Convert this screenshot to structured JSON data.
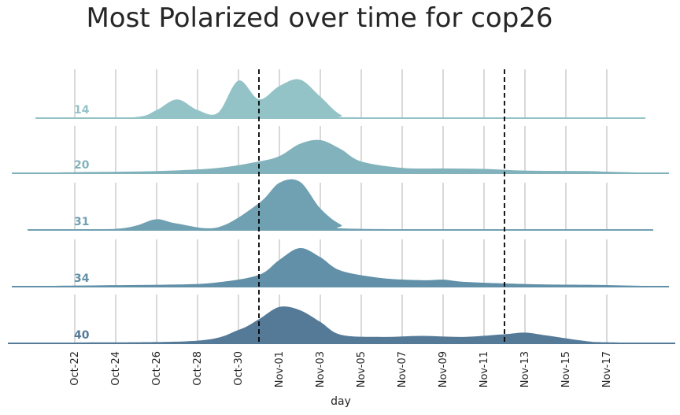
{
  "chart_data": {
    "type": "area",
    "title": "Most Polarized  over time for cop26",
    "xlabel": "day",
    "ylabel": "",
    "x_range": [
      "2021-10-22",
      "2021-11-17"
    ],
    "x_ticks": [
      "Oct-22",
      "Oct-24",
      "Oct-26",
      "Oct-28",
      "Oct-30",
      "Nov-01",
      "Nov-03",
      "Nov-05",
      "Nov-07",
      "Nov-09",
      "Nov-11",
      "Nov-13",
      "Nov-15",
      "Nov-17"
    ],
    "reference_lines": [
      "2021-10-31",
      "2021-11-12"
    ],
    "grid": true,
    "colors": [
      "#93c3c7",
      "#82b3bc",
      "#70a1b2",
      "#6190a8",
      "#557a98"
    ],
    "series": [
      {
        "name": "14",
        "points": [
          [
            "2021-10-22",
            0
          ],
          [
            "2021-10-25",
            0.02
          ],
          [
            "2021-10-26",
            0.15
          ],
          [
            "2021-10-27",
            0.35
          ],
          [
            "2021-10-28",
            0.15
          ],
          [
            "2021-10-29",
            0.1
          ],
          [
            "2021-10-30",
            0.7
          ],
          [
            "2021-10-31",
            0.35
          ],
          [
            "2021-11-01",
            0.6
          ],
          [
            "2021-11-02",
            0.72
          ],
          [
            "2021-11-03",
            0.4
          ],
          [
            "2021-11-04",
            0.06
          ],
          [
            "2021-11-05",
            0.01
          ],
          [
            "2021-11-17",
            0
          ]
        ]
      },
      {
        "name": "20",
        "points": [
          [
            "2021-10-22",
            0.02
          ],
          [
            "2021-10-26",
            0.04
          ],
          [
            "2021-10-29",
            0.1
          ],
          [
            "2021-10-31",
            0.22
          ],
          [
            "2021-11-01",
            0.32
          ],
          [
            "2021-11-02",
            0.55
          ],
          [
            "2021-11-03",
            0.62
          ],
          [
            "2021-11-04",
            0.45
          ],
          [
            "2021-11-05",
            0.22
          ],
          [
            "2021-11-07",
            0.1
          ],
          [
            "2021-11-09",
            0.09
          ],
          [
            "2021-11-11",
            0.08
          ],
          [
            "2021-11-13",
            0.05
          ],
          [
            "2021-11-16",
            0.04
          ],
          [
            "2021-11-17",
            0.03
          ]
        ]
      },
      {
        "name": "31",
        "points": [
          [
            "2021-10-22",
            0
          ],
          [
            "2021-10-24",
            0.02
          ],
          [
            "2021-10-25",
            0.08
          ],
          [
            "2021-10-26",
            0.2
          ],
          [
            "2021-10-27",
            0.12
          ],
          [
            "2021-10-29",
            0.05
          ],
          [
            "2021-10-31",
            0.5
          ],
          [
            "2021-11-01",
            0.88
          ],
          [
            "2021-11-02",
            0.9
          ],
          [
            "2021-11-03",
            0.4
          ],
          [
            "2021-11-04",
            0.1
          ],
          [
            "2021-11-05",
            0.02
          ],
          [
            "2021-11-17",
            0
          ]
        ]
      },
      {
        "name": "34",
        "points": [
          [
            "2021-10-22",
            0.02
          ],
          [
            "2021-10-27",
            0.04
          ],
          [
            "2021-10-29",
            0.08
          ],
          [
            "2021-10-31",
            0.22
          ],
          [
            "2021-11-01",
            0.5
          ],
          [
            "2021-11-02",
            0.72
          ],
          [
            "2021-11-03",
            0.55
          ],
          [
            "2021-11-04",
            0.3
          ],
          [
            "2021-11-06",
            0.16
          ],
          [
            "2021-11-08",
            0.12
          ],
          [
            "2021-11-09",
            0.13
          ],
          [
            "2021-11-10",
            0.09
          ],
          [
            "2021-11-12",
            0.06
          ],
          [
            "2021-11-14",
            0.04
          ],
          [
            "2021-11-17",
            0.03
          ]
        ]
      },
      {
        "name": "40",
        "points": [
          [
            "2021-10-22",
            0.01
          ],
          [
            "2021-10-28",
            0.05
          ],
          [
            "2021-10-30",
            0.25
          ],
          [
            "2021-10-31",
            0.45
          ],
          [
            "2021-11-01",
            0.68
          ],
          [
            "2021-11-02",
            0.62
          ],
          [
            "2021-11-03",
            0.4
          ],
          [
            "2021-11-04",
            0.16
          ],
          [
            "2021-11-06",
            0.12
          ],
          [
            "2021-11-08",
            0.14
          ],
          [
            "2021-11-10",
            0.12
          ],
          [
            "2021-11-12",
            0.17
          ],
          [
            "2021-11-13",
            0.2
          ],
          [
            "2021-11-14",
            0.15
          ],
          [
            "2021-11-16",
            0.04
          ],
          [
            "2021-11-17",
            0.02
          ]
        ]
      }
    ]
  }
}
